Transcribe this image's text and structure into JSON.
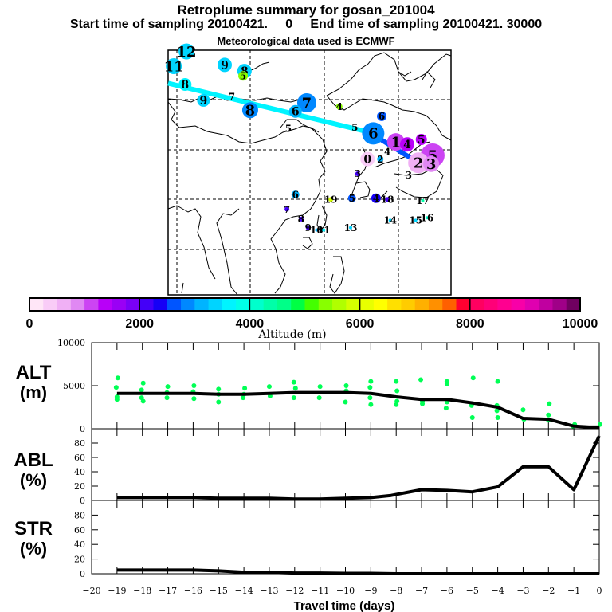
{
  "header": {
    "title": "Retroplume summary for gosan_201004",
    "subtitle": "Start time of sampling 20100421.     0     End time of sampling 20100421. 30000",
    "met_note": "Meteorological data used is ECMWF"
  },
  "colorbar": {
    "label": "Altitude (m)",
    "min": 0,
    "max": 10000,
    "tick_labels": [
      "0",
      "2000",
      "4000",
      "6000",
      "8000",
      "10000"
    ],
    "colors": [
      "#ffe6f7",
      "#f9ccf7",
      "#f0b0f5",
      "#e088f3",
      "#cc44f3",
      "#b800f8",
      "#9a00f5",
      "#7a00f7",
      "#4400f8",
      "#1600f6",
      "#0055ff",
      "#0088ff",
      "#00b4ff",
      "#00d4ff",
      "#00f4ff",
      "#00ffe8",
      "#00ffcc",
      "#00ffa8",
      "#00ff88",
      "#00ff44",
      "#44ff00",
      "#88ff00",
      "#b0ff00",
      "#d4ff00",
      "#e8ff00",
      "#ffff00",
      "#ffe000",
      "#ffcc00",
      "#ffb000",
      "#ff9000",
      "#ff6000",
      "#ff0030",
      "#ff0060",
      "#ff0078",
      "#ff0090",
      "#f800a8",
      "#e000b0",
      "#c000a0",
      "#a00088",
      "#700060"
    ]
  },
  "map": {
    "labels": [
      {
        "t": "12",
        "lon": -0.87,
        "lat": 0.99,
        "c": "#00d4ff",
        "r": 10
      },
      {
        "t": "11",
        "lon": -0.96,
        "lat": 0.87,
        "c": "#00d4ff",
        "r": 10
      },
      {
        "t": "9",
        "lon": -0.6,
        "lat": 0.88,
        "c": "#00d4ff",
        "r": 9
      },
      {
        "t": "8",
        "lon": -0.46,
        "lat": 0.83,
        "c": "#00d4ff",
        "r": 9
      },
      {
        "t": "5",
        "lon": -0.47,
        "lat": 0.79,
        "c": "#88ff00",
        "r": 6
      },
      {
        "t": "8",
        "lon": -0.88,
        "lat": 0.72,
        "c": "#00f4ff",
        "r": 8
      },
      {
        "t": "9",
        "lon": -0.75,
        "lat": 0.59,
        "c": "#00d4ff",
        "r": 8
      },
      {
        "t": "7",
        "lon": -0.55,
        "lat": 0.62,
        "c": null,
        "r": 0
      },
      {
        "t": "7",
        "lon": -0.02,
        "lat": 0.57,
        "c": "#0088ff",
        "r": 12
      },
      {
        "t": "8",
        "lon": -0.42,
        "lat": 0.51,
        "c": "#0088ff",
        "r": 10
      },
      {
        "t": "6",
        "lon": -0.1,
        "lat": 0.5,
        "c": "#00b4ff",
        "r": 8
      },
      {
        "t": "5",
        "lon": -0.15,
        "lat": 0.36,
        "c": null,
        "r": 0
      },
      {
        "t": "4",
        "lon": 0.21,
        "lat": 0.54,
        "c": "#88ff00",
        "r": 4
      },
      {
        "t": "6",
        "lon": 0.51,
        "lat": 0.46,
        "c": "#0055ff",
        "r": 6
      },
      {
        "t": "5",
        "lon": 0.32,
        "lat": 0.37,
        "c": null,
        "r": 0
      },
      {
        "t": "6",
        "lon": 0.45,
        "lat": 0.32,
        "c": "#0088ff",
        "r": 14
      },
      {
        "t": "1",
        "lon": 0.61,
        "lat": 0.25,
        "c": "#cc44f3",
        "r": 11
      },
      {
        "t": "4",
        "lon": 0.69,
        "lat": 0.23,
        "c": "#b800f8",
        "r": 9
      },
      {
        "t": "5",
        "lon": 0.79,
        "lat": 0.27,
        "c": "#b800f8",
        "r": 7
      },
      {
        "t": "4",
        "lon": 0.55,
        "lat": 0.17,
        "c": null,
        "r": 0
      },
      {
        "t": "0",
        "lon": 0.41,
        "lat": 0.11,
        "c": "#f9ccf7",
        "r": 9
      },
      {
        "t": "2",
        "lon": 0.5,
        "lat": 0.11,
        "c": "#00b4ff",
        "r": 4
      },
      {
        "t": "5",
        "lon": 0.87,
        "lat": 0.14,
        "c": "#cc44f3",
        "r": 15
      },
      {
        "t": "2",
        "lon": 0.77,
        "lat": 0.08,
        "c": "#f0b0f5",
        "r": 13
      },
      {
        "t": "3",
        "lon": 0.86,
        "lat": 0.07,
        "c": "#e088f3",
        "r": 10
      },
      {
        "t": "3",
        "lon": 0.7,
        "lat": -0.02,
        "c": null,
        "r": 0
      },
      {
        "t": "3",
        "lon": 0.34,
        "lat": -0.01,
        "c": "#4400f8",
        "r": 3
      },
      {
        "t": "6",
        "lon": -0.1,
        "lat": -0.18,
        "c": "#00b4ff",
        "r": 5
      },
      {
        "t": "19",
        "lon": 0.15,
        "lat": -0.22,
        "c": "#d4ff00",
        "r": 3
      },
      {
        "t": "5",
        "lon": 0.3,
        "lat": -0.21,
        "c": "#0055ff",
        "r": 5
      },
      {
        "t": "4",
        "lon": 0.47,
        "lat": -0.21,
        "c": "#1600f6",
        "r": 6
      },
      {
        "t": "18",
        "lon": 0.55,
        "lat": -0.22,
        "c": "#4400f8",
        "r": 3
      },
      {
        "t": "17",
        "lon": 0.8,
        "lat": -0.23,
        "c": "#00ffa8",
        "r": 2
      },
      {
        "t": "7",
        "lon": -0.16,
        "lat": -0.3,
        "c": "#4400f8",
        "r": 3
      },
      {
        "t": "8",
        "lon": -0.06,
        "lat": -0.38,
        "c": "#4400f8",
        "r": 3
      },
      {
        "t": "14",
        "lon": 0.57,
        "lat": -0.39,
        "c": "#00d4ff",
        "r": 2
      },
      {
        "t": "15",
        "lon": 0.75,
        "lat": -0.39,
        "c": "#00d4ff",
        "r": 2
      },
      {
        "t": "16",
        "lon": 0.83,
        "lat": -0.37,
        "c": "#00ffcc",
        "r": 2
      },
      {
        "t": "9",
        "lon": -0.01,
        "lat": -0.45,
        "c": "#4400f8",
        "r": 3
      },
      {
        "t": "10",
        "lon": 0.05,
        "lat": -0.47,
        "c": "#00b4ff",
        "r": 2
      },
      {
        "t": "11",
        "lon": 0.1,
        "lat": -0.47,
        "c": "#00f4ff",
        "r": 2
      },
      {
        "t": "13",
        "lon": 0.29,
        "lat": -0.45,
        "c": "#00d4ff",
        "r": 2
      }
    ],
    "track_lines": [
      {
        "c": "#00f4ff",
        "from": [
          -1.0,
          0.73
        ],
        "to": [
          0.42,
          0.33
        ]
      },
      {
        "c": "#0055ff",
        "from": [
          0.42,
          0.33
        ],
        "to": [
          0.77,
          0.08
        ]
      }
    ]
  },
  "chart_data": [
    {
      "type": "line",
      "title": "ALT (m)",
      "ylabel": "ALT (m)",
      "ylim": [
        0,
        10000
      ],
      "yticks": [
        "0",
        "5000",
        "10000"
      ],
      "x": [
        -19,
        -18,
        -17,
        -16,
        -15,
        -14,
        -13,
        -12,
        -11,
        -10,
        -9,
        -8,
        -7,
        -6,
        -5,
        -4,
        -3,
        -2,
        -1,
        -0.4,
        0
      ],
      "series": [
        {
          "name": "mean altitude",
          "values": [
            4100,
            4100,
            4100,
            4100,
            4000,
            4000,
            4100,
            4200,
            4200,
            4200,
            4100,
            3700,
            3400,
            3400,
            3000,
            2500,
            1200,
            1100,
            300,
            200,
            200
          ]
        }
      ],
      "scatter": [
        {
          "x": -19,
          "y": [
            5900,
            4800,
            3700,
            3400
          ]
        },
        {
          "x": -18,
          "y": [
            5300,
            4500,
            3600,
            3200
          ]
        },
        {
          "x": -17,
          "y": [
            4900,
            4200,
            3600
          ]
        },
        {
          "x": -16,
          "y": [
            5000,
            4300,
            3500
          ]
        },
        {
          "x": -15,
          "y": [
            4600,
            4000,
            3100
          ]
        },
        {
          "x": -14,
          "y": [
            4700,
            4000,
            3600
          ]
        },
        {
          "x": -13,
          "y": [
            4900,
            3800
          ]
        },
        {
          "x": -12,
          "y": [
            5400,
            4700,
            3600
          ]
        },
        {
          "x": -11,
          "y": [
            4900,
            3600
          ]
        },
        {
          "x": -10,
          "y": [
            5000,
            4400,
            3100
          ]
        },
        {
          "x": -9,
          "y": [
            5500,
            4800,
            3600,
            2800
          ]
        },
        {
          "x": -8,
          "y": [
            5500,
            4400,
            3200,
            2800
          ]
        },
        {
          "x": -7,
          "y": [
            5700,
            3200,
            2900
          ]
        },
        {
          "x": -6,
          "y": [
            5500,
            5200,
            3100,
            2400
          ]
        },
        {
          "x": -5,
          "y": [
            5900,
            2700,
            1300
          ]
        },
        {
          "x": -4,
          "y": [
            5500,
            2700,
            2100,
            1300
          ]
        },
        {
          "x": -3,
          "y": [
            2200,
            1100
          ]
        },
        {
          "x": -2,
          "y": [
            2900,
            1600,
            1000
          ]
        },
        {
          "x": -1,
          "y": [
            500,
            300
          ]
        },
        {
          "x": 0,
          "y": [
            500
          ]
        }
      ]
    },
    {
      "type": "line",
      "title": "ABL (%)",
      "ylabel": "ABL (%)",
      "ylim": [
        0,
        100
      ],
      "yticks": [
        "0",
        "20",
        "40",
        "60",
        "80"
      ],
      "x": [
        -19,
        -18,
        -17,
        -16,
        -15,
        -14,
        -13,
        -12,
        -11,
        -10,
        -9,
        -8.2,
        -7,
        -6,
        -5,
        -4,
        -3,
        -2,
        -1,
        0
      ],
      "series": [
        {
          "name": "ABL fraction",
          "values": [
            4,
            4,
            4,
            4,
            3,
            3,
            3,
            2,
            2,
            3,
            4,
            7,
            15,
            14,
            12,
            19,
            47,
            47,
            15,
            90
          ]
        }
      ]
    },
    {
      "type": "line",
      "title": "STR (%)",
      "ylabel": "STR (%)",
      "ylim": [
        0,
        100
      ],
      "yticks": [
        "0",
        "20",
        "40",
        "60",
        "80"
      ],
      "xlabel": "Travel time (days)",
      "xticks": [
        "-20",
        "-19",
        "-18",
        "-17",
        "-16",
        "-15",
        "-14",
        "-13",
        "-12",
        "-11",
        "-10",
        "-9",
        "-8",
        "-7",
        "-6",
        "-5",
        "-4",
        "-3",
        "-2",
        "-1",
        "0"
      ],
      "x": [
        -19,
        -18,
        -17,
        -16,
        -15,
        -14,
        -13,
        -12,
        -11,
        -10,
        -9,
        -8,
        -7,
        -6,
        -5,
        -4,
        -3,
        -2,
        -1,
        0
      ],
      "series": [
        {
          "name": "stratosphere fraction",
          "values": [
            5,
            5,
            5,
            5,
            4,
            2,
            2,
            1,
            1,
            0.5,
            0.5,
            0,
            0,
            0,
            0,
            0,
            0,
            0,
            0,
            0
          ]
        }
      ]
    }
  ],
  "panels": {
    "alt_label": "ALT",
    "alt_unit": "(m)",
    "abl_label": "ABL",
    "abl_unit": "(%)",
    "str_label": "STR",
    "str_unit": "(%)",
    "xlabel": "Travel time (days)"
  }
}
